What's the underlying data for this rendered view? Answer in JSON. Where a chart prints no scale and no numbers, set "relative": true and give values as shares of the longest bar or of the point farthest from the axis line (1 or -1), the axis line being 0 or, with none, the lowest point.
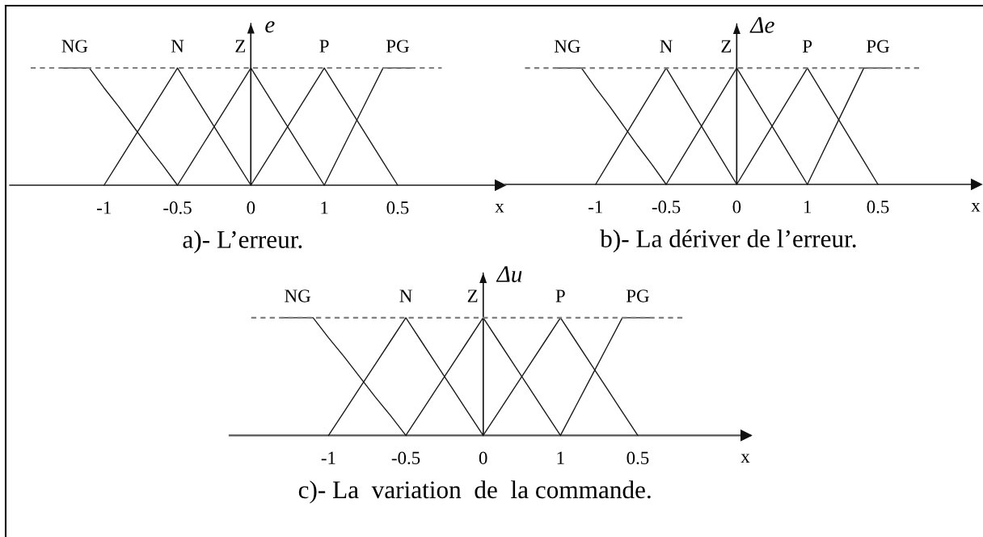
{
  "chart_data": [
    {
      "type": "line",
      "title": "a)- L’erreur.",
      "xlabel": "x",
      "ylabel": "e",
      "relative": true,
      "tick_labels": "x",
      "categories": [
        null,
        null,
        null,
        null,
        null,
        "-1",
        null,
        null,
        null,
        null,
        "-0.5",
        null,
        null,
        null,
        null,
        "0",
        null,
        null,
        null,
        null,
        "1",
        null,
        null,
        null,
        null,
        "0.5",
        null,
        null,
        null,
        null,
        null
      ],
      "series": [
        {
          "name": "NG",
          "color": "#1a1a1a",
          "values": [
            null,
            null,
            1,
            1,
            1,
            0.83,
            0.67,
            0.5,
            0.33,
            0.17,
            0,
            null,
            null,
            null,
            null,
            null,
            null,
            null,
            null,
            null,
            null,
            null,
            null,
            null,
            null,
            null,
            null,
            null,
            null,
            null,
            null
          ]
        },
        {
          "name": "N",
          "color": "#1a1a1a",
          "values": [
            null,
            null,
            null,
            null,
            null,
            0,
            0.2,
            0.4,
            0.6,
            0.8,
            1,
            0.8,
            0.6,
            0.4,
            0.2,
            0,
            null,
            null,
            null,
            null,
            null,
            null,
            null,
            null,
            null,
            null,
            null,
            null,
            null,
            null,
            null
          ]
        },
        {
          "name": "Z",
          "color": "#1a1a1a",
          "values": [
            null,
            null,
            null,
            null,
            null,
            null,
            null,
            null,
            null,
            null,
            0,
            0.2,
            0.4,
            0.6,
            0.8,
            1,
            0.8,
            0.6,
            0.4,
            0.2,
            0,
            null,
            null,
            null,
            null,
            null,
            null,
            null,
            null,
            null,
            null
          ]
        },
        {
          "name": "P",
          "color": "#1a1a1a",
          "values": [
            null,
            null,
            null,
            null,
            null,
            null,
            null,
            null,
            null,
            null,
            null,
            null,
            null,
            null,
            null,
            0,
            0.2,
            0.4,
            0.6,
            0.8,
            1,
            0.8,
            0.6,
            0.4,
            0.2,
            0,
            null,
            null,
            null,
            null,
            null
          ]
        },
        {
          "name": "PG",
          "color": "#1a1a1a",
          "values": [
            null,
            null,
            null,
            null,
            null,
            null,
            null,
            null,
            null,
            null,
            null,
            null,
            null,
            null,
            null,
            null,
            null,
            null,
            null,
            null,
            0,
            0.25,
            0.5,
            0.75,
            1,
            1,
            1,
            null,
            null,
            null,
            null
          ]
        },
        {
          "color": "#808080",
          "line_style": "dashed",
          "values": [
            1,
            1,
            1,
            1,
            1,
            1,
            1,
            1,
            1,
            1,
            1,
            1,
            1,
            1,
            1,
            1,
            1,
            1,
            1,
            1,
            1,
            1,
            1,
            1,
            1,
            1,
            1,
            1,
            1,
            null,
            null
          ]
        }
      ]
    },
    {
      "type": "line",
      "title": "b)- La dériver de l’erreur.",
      "xlabel": "x",
      "ylabel": "Δe",
      "relative": true,
      "tick_labels": "x",
      "categories": [
        null,
        null,
        null,
        null,
        null,
        "-1",
        null,
        null,
        null,
        null,
        "-0.5",
        null,
        null,
        null,
        null,
        "0",
        null,
        null,
        null,
        null,
        "1",
        null,
        null,
        null,
        null,
        "0.5",
        null,
        null,
        null,
        null,
        null
      ],
      "series": [
        {
          "name": "NG",
          "color": "#1a1a1a",
          "values": [
            null,
            null,
            1,
            1,
            1,
            0.83,
            0.67,
            0.5,
            0.33,
            0.17,
            0,
            null,
            null,
            null,
            null,
            null,
            null,
            null,
            null,
            null,
            null,
            null,
            null,
            null,
            null,
            null,
            null,
            null,
            null,
            null,
            null
          ]
        },
        {
          "name": "N",
          "color": "#1a1a1a",
          "values": [
            null,
            null,
            null,
            null,
            null,
            0,
            0.2,
            0.4,
            0.6,
            0.8,
            1,
            0.8,
            0.6,
            0.4,
            0.2,
            0,
            null,
            null,
            null,
            null,
            null,
            null,
            null,
            null,
            null,
            null,
            null,
            null,
            null,
            null,
            null
          ]
        },
        {
          "name": "Z",
          "color": "#1a1a1a",
          "values": [
            null,
            null,
            null,
            null,
            null,
            null,
            null,
            null,
            null,
            null,
            0,
            0.2,
            0.4,
            0.6,
            0.8,
            1,
            0.8,
            0.6,
            0.4,
            0.2,
            0,
            null,
            null,
            null,
            null,
            null,
            null,
            null,
            null,
            null,
            null
          ]
        },
        {
          "name": "P",
          "color": "#1a1a1a",
          "values": [
            null,
            null,
            null,
            null,
            null,
            null,
            null,
            null,
            null,
            null,
            null,
            null,
            null,
            null,
            null,
            0,
            0.2,
            0.4,
            0.6,
            0.8,
            1,
            0.8,
            0.6,
            0.4,
            0.2,
            0,
            null,
            null,
            null,
            null,
            null
          ]
        },
        {
          "name": "PG",
          "color": "#1a1a1a",
          "values": [
            null,
            null,
            null,
            null,
            null,
            null,
            null,
            null,
            null,
            null,
            null,
            null,
            null,
            null,
            null,
            null,
            null,
            null,
            null,
            null,
            0,
            0.25,
            0.5,
            0.75,
            1,
            1,
            1,
            null,
            null,
            null,
            null
          ]
        },
        {
          "color": "#808080",
          "line_style": "dashed",
          "values": [
            1,
            1,
            1,
            1,
            1,
            1,
            1,
            1,
            1,
            1,
            1,
            1,
            1,
            1,
            1,
            1,
            1,
            1,
            1,
            1,
            1,
            1,
            1,
            1,
            1,
            1,
            1,
            1,
            1,
            null,
            null
          ]
        }
      ]
    },
    {
      "type": "line",
      "title": "c)- La  variation  de  la commande.",
      "xlabel": "x",
      "ylabel": "Δu",
      "relative": true,
      "tick_labels": "x",
      "categories": [
        null,
        null,
        null,
        null,
        null,
        "-1",
        null,
        null,
        null,
        null,
        "-0.5",
        null,
        null,
        null,
        null,
        "0",
        null,
        null,
        null,
        null,
        "1",
        null,
        null,
        null,
        null,
        "0.5",
        null,
        null,
        null,
        null,
        null
      ],
      "series": [
        {
          "name": "NG",
          "color": "#1a1a1a",
          "values": [
            null,
            null,
            1,
            1,
            1,
            0.83,
            0.67,
            0.5,
            0.33,
            0.17,
            0,
            null,
            null,
            null,
            null,
            null,
            null,
            null,
            null,
            null,
            null,
            null,
            null,
            null,
            null,
            null,
            null,
            null,
            null,
            null,
            null
          ]
        },
        {
          "name": "N",
          "color": "#1a1a1a",
          "values": [
            null,
            null,
            null,
            null,
            null,
            0,
            0.2,
            0.4,
            0.6,
            0.8,
            1,
            0.8,
            0.6,
            0.4,
            0.2,
            0,
            null,
            null,
            null,
            null,
            null,
            null,
            null,
            null,
            null,
            null,
            null,
            null,
            null,
            null,
            null
          ]
        },
        {
          "name": "Z",
          "color": "#1a1a1a",
          "values": [
            null,
            null,
            null,
            null,
            null,
            null,
            null,
            null,
            null,
            null,
            0,
            0.2,
            0.4,
            0.6,
            0.8,
            1,
            0.8,
            0.6,
            0.4,
            0.2,
            0,
            null,
            null,
            null,
            null,
            null,
            null,
            null,
            null,
            null,
            null
          ]
        },
        {
          "name": "P",
          "color": "#1a1a1a",
          "values": [
            null,
            null,
            null,
            null,
            null,
            null,
            null,
            null,
            null,
            null,
            null,
            null,
            null,
            null,
            null,
            0,
            0.2,
            0.4,
            0.6,
            0.8,
            1,
            0.8,
            0.6,
            0.4,
            0.2,
            0,
            null,
            null,
            null,
            null,
            null
          ]
        },
        {
          "name": "PG",
          "color": "#1a1a1a",
          "values": [
            null,
            null,
            null,
            null,
            null,
            null,
            null,
            null,
            null,
            null,
            null,
            null,
            null,
            null,
            null,
            null,
            null,
            null,
            null,
            null,
            0,
            0.25,
            0.5,
            0.75,
            1,
            1,
            1,
            null,
            null,
            null,
            null
          ]
        },
        {
          "color": "#808080",
          "line_style": "dashed",
          "values": [
            1,
            1,
            1,
            1,
            1,
            1,
            1,
            1,
            1,
            1,
            1,
            1,
            1,
            1,
            1,
            1,
            1,
            1,
            1,
            1,
            1,
            1,
            1,
            1,
            1,
            1,
            1,
            1,
            1,
            null,
            null
          ]
        }
      ]
    }
  ]
}
